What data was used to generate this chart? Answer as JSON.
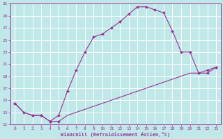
{
  "xlabel": "Windchill (Refroidissement éolien,°C)",
  "bg_color": "#c0e8e8",
  "grid_color": "#ffffff",
  "line_color": "#993399",
  "xlim": [
    -0.5,
    23.5
  ],
  "ylim": [
    11,
    31
  ],
  "xticks": [
    0,
    1,
    2,
    3,
    4,
    5,
    6,
    7,
    8,
    9,
    10,
    11,
    12,
    13,
    14,
    15,
    16,
    17,
    18,
    19,
    20,
    21,
    22,
    23
  ],
  "yticks": [
    11,
    13,
    15,
    17,
    19,
    21,
    23,
    25,
    27,
    29,
    31
  ],
  "upper_x": [
    0,
    1,
    2,
    3,
    4,
    5,
    6,
    7,
    8,
    9,
    10,
    11,
    12,
    13,
    14,
    15,
    16,
    17,
    18,
    19,
    20,
    21,
    22,
    23
  ],
  "upper_y": [
    14.5,
    13.0,
    12.5,
    12.5,
    11.5,
    12.5,
    16.5,
    20.0,
    23.0,
    25.5,
    26.0,
    27.0,
    28.0,
    29.3,
    30.5,
    30.5,
    30.0,
    29.5,
    26.5,
    23.0,
    23.0,
    19.5,
    19.5,
    20.5
  ],
  "lower_x": [
    0,
    1,
    2,
    3,
    4,
    5,
    6,
    7,
    8,
    9,
    10,
    11,
    12,
    13,
    14,
    15,
    16,
    17,
    18,
    19,
    20,
    21,
    22,
    23
  ],
  "lower_y": [
    14.5,
    13.0,
    12.5,
    12.5,
    11.5,
    11.5,
    12.5,
    13.0,
    13.5,
    14.0,
    14.5,
    15.0,
    15.5,
    16.0,
    16.5,
    17.0,
    17.5,
    18.0,
    18.5,
    19.0,
    19.5,
    19.5,
    20.0,
    20.5
  ],
  "upper_markers_x": [
    0,
    1,
    2,
    3,
    4,
    5,
    6,
    7,
    8,
    9,
    10,
    11,
    12,
    13,
    14,
    15,
    16,
    17,
    18,
    19,
    20,
    21,
    22,
    23
  ],
  "upper_markers_y": [
    14.5,
    13.0,
    12.5,
    12.5,
    11.5,
    12.5,
    16.5,
    20.0,
    23.0,
    25.5,
    26.0,
    27.0,
    28.0,
    29.3,
    30.5,
    30.5,
    30.0,
    29.5,
    26.5,
    23.0,
    23.0,
    19.5,
    19.5,
    20.5
  ],
  "lower_markers_x": [
    0,
    2,
    3,
    4,
    5,
    21,
    22,
    23
  ],
  "lower_markers_y": [
    14.5,
    12.5,
    12.5,
    11.5,
    11.5,
    19.5,
    20.0,
    20.5
  ]
}
